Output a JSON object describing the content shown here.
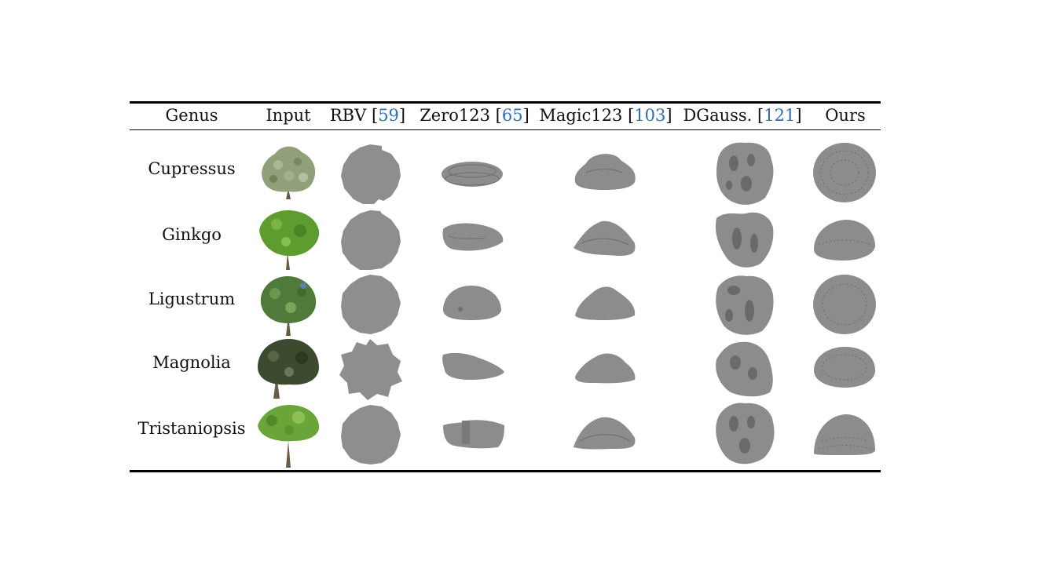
{
  "table": {
    "headers": [
      {
        "label": "Genus",
        "ref": ""
      },
      {
        "label": "Input",
        "ref": ""
      },
      {
        "label": "RBV",
        "ref": "59"
      },
      {
        "label": "Zero123",
        "ref": "65"
      },
      {
        "label": "Magic123",
        "ref": "103"
      },
      {
        "label": "DGauss.",
        "ref": "121"
      },
      {
        "label": "Ours",
        "ref": ""
      }
    ],
    "rows": [
      {
        "genus": "Cupressus"
      },
      {
        "genus": "Ginkgo"
      },
      {
        "genus": "Ligustrum"
      },
      {
        "genus": "Magnolia"
      },
      {
        "genus": "Tristaniopsis"
      }
    ]
  },
  "colors": {
    "mesh": "#8c8c8c",
    "mesh_dark": "#5f5f5f",
    "rbv_disc": "#8e8e8e",
    "citation": "#2f6fb0",
    "foliage_cupressus": "#8fa07a",
    "foliage_ginkgo": "#5f9c2f",
    "foliage_ligustrum": "#4f7a3a",
    "foliage_magnolia": "#3d4a30",
    "foliage_tristaniopsis": "#6aa53a",
    "trunk": "#6b5a44"
  }
}
